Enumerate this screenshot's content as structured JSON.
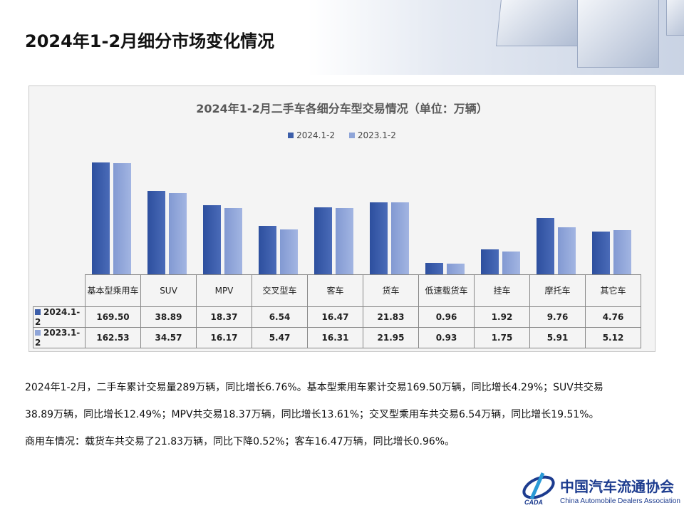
{
  "slide_title": "2024年1-2月细分市场变化情况",
  "chart_data": {
    "type": "bar",
    "title": "2024年1-2月二手车各细分车型交易情况（单位：万辆）",
    "yscale": "log",
    "legend_position": "top",
    "grid": false,
    "categories": [
      "基本型乘用车",
      "SUV",
      "MPV",
      "交叉型车",
      "客车",
      "货车",
      "低速载货车",
      "挂车",
      "摩托车",
      "其它车"
    ],
    "series": [
      {
        "name": "2024.1-2",
        "color": "#3c5ea9",
        "values": [
          169.5,
          38.89,
          18.37,
          6.54,
          16.47,
          21.83,
          0.96,
          1.92,
          9.76,
          4.76
        ]
      },
      {
        "name": "2023.1-2",
        "color": "#8fa5d8",
        "values": [
          162.53,
          34.57,
          16.17,
          5.47,
          16.31,
          21.95,
          0.93,
          1.75,
          5.91,
          5.12
        ]
      }
    ],
    "table_values": [
      [
        "169.50",
        "38.89",
        "18.37",
        "6.54",
        "16.47",
        "21.83",
        "0.96",
        "1.92",
        "9.76",
        "4.76"
      ],
      [
        "162.53",
        "34.57",
        "16.17",
        "5.47",
        "16.31",
        "21.95",
        "0.93",
        "1.75",
        "5.91",
        "5.12"
      ]
    ]
  },
  "paragraphs": [
    "2024年1-2月，二手车累计交易量289万辆，同比增长6.76%。基本型乘用车累计交易169.50万辆，同比增长4.29%；SUV共交易",
    "38.89万辆，同比增长12.49%；MPV共交易18.37万辆，同比增长13.61%；交叉型乘用车共交易6.54万辆，同比增长19.51%。",
    "商用车情况：载货车共交易了21.83万辆，同比下降0.52%；客车16.47万辆，同比增长0.96%。"
  ],
  "logo": {
    "cn": "中国汽车流通协会",
    "en": "China Automobile Dealers Association",
    "mark": "CADA"
  }
}
